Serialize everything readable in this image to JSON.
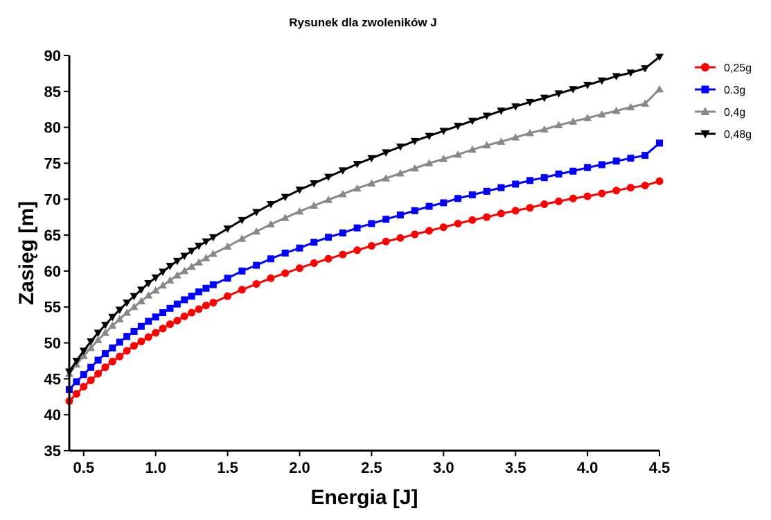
{
  "chart_data": {
    "type": "line",
    "title": "Rysunek dla zwoleników J",
    "xlabel": "Energia [J]",
    "ylabel": "Zasięg [m]",
    "xlim": [
      0.4,
      4.5
    ],
    "ylim": [
      35,
      90
    ],
    "x_ticks": [
      "0.5",
      "1.0",
      "1.5",
      "2.0",
      "2.5",
      "3.0",
      "3.5",
      "4.0",
      "4.5"
    ],
    "x_tick_values": [
      0.5,
      1.0,
      1.5,
      2.0,
      2.5,
      3.0,
      3.5,
      4.0,
      4.5
    ],
    "y_ticks": [
      "35",
      "40",
      "45",
      "50",
      "55",
      "60",
      "65",
      "70",
      "75",
      "80",
      "85",
      "90"
    ],
    "y_tick_values": [
      35,
      40,
      45,
      50,
      55,
      60,
      65,
      70,
      75,
      80,
      85,
      90
    ],
    "grid": false,
    "legend_position": "top-right",
    "x": [
      0.4,
      0.45,
      0.5,
      0.55,
      0.6,
      0.65,
      0.7,
      0.75,
      0.8,
      0.85,
      0.9,
      0.95,
      1.0,
      1.05,
      1.1,
      1.15,
      1.2,
      1.25,
      1.3,
      1.35,
      1.4,
      1.5,
      1.6,
      1.7,
      1.8,
      1.9,
      2.0,
      2.1,
      2.2,
      2.3,
      2.4,
      2.5,
      2.6,
      2.7,
      2.8,
      2.9,
      3.0,
      3.1,
      3.2,
      3.3,
      3.4,
      3.5,
      3.6,
      3.7,
      3.8,
      3.9,
      4.0,
      4.1,
      4.2,
      4.3,
      4.4,
      4.5
    ],
    "series": [
      {
        "name": "0,25g",
        "color": "#ff0000",
        "marker": "circle",
        "values": [
          41.9,
          42.9,
          43.9,
          44.8,
          45.7,
          46.6,
          47.4,
          48.1,
          48.9,
          49.6,
          50.2,
          50.8,
          51.4,
          52.0,
          52.6,
          53.1,
          53.7,
          54.2,
          54.7,
          55.2,
          55.6,
          56.5,
          57.4,
          58.2,
          59.0,
          59.7,
          60.4,
          61.1,
          61.7,
          62.3,
          62.9,
          63.5,
          64.1,
          64.6,
          65.1,
          65.6,
          66.1,
          66.6,
          67.1,
          67.5,
          68.0,
          68.4,
          68.8,
          69.3,
          69.7,
          70.1,
          70.4,
          70.8,
          71.2,
          71.6,
          71.9,
          72.5
        ]
      },
      {
        "name": "0.3g",
        "color": "#0000ff",
        "marker": "square",
        "values": [
          43.5,
          44.6,
          45.6,
          46.6,
          47.6,
          48.5,
          49.3,
          50.1,
          50.9,
          51.6,
          52.3,
          53.0,
          53.6,
          54.2,
          54.8,
          55.4,
          56.0,
          56.5,
          57.1,
          57.6,
          58.1,
          59.0,
          60.0,
          60.8,
          61.7,
          62.5,
          63.2,
          64.0,
          64.7,
          65.3,
          66.0,
          66.6,
          67.2,
          67.8,
          68.4,
          69.0,
          69.5,
          70.1,
          70.6,
          71.1,
          71.6,
          72.1,
          72.6,
          73.0,
          73.5,
          73.9,
          74.4,
          74.8,
          75.3,
          75.7,
          76.1,
          77.8
        ]
      },
      {
        "name": "0,4g",
        "color": "#888888",
        "marker": "triangle-up",
        "values": [
          45.7,
          47.0,
          48.2,
          49.3,
          50.4,
          51.4,
          52.4,
          53.3,
          54.2,
          55.0,
          55.8,
          56.6,
          57.3,
          58.0,
          58.7,
          59.4,
          60.0,
          60.6,
          61.2,
          61.8,
          62.4,
          63.4,
          64.5,
          65.5,
          66.5,
          67.4,
          68.3,
          69.1,
          69.9,
          70.7,
          71.5,
          72.2,
          72.9,
          73.6,
          74.3,
          75.0,
          75.6,
          76.2,
          76.9,
          77.5,
          78.0,
          78.6,
          79.2,
          79.7,
          80.3,
          80.8,
          81.3,
          81.8,
          82.3,
          82.8,
          83.3,
          85.3
        ]
      },
      {
        "name": "0,48g",
        "color": "#000000",
        "marker": "triangle-down",
        "values": [
          46.0,
          47.5,
          48.9,
          50.2,
          51.4,
          52.5,
          53.6,
          54.6,
          55.6,
          56.5,
          57.4,
          58.3,
          59.1,
          59.9,
          60.7,
          61.4,
          62.1,
          62.8,
          63.5,
          64.1,
          64.7,
          65.9,
          67.1,
          68.2,
          69.3,
          70.3,
          71.3,
          72.2,
          73.1,
          74.0,
          74.9,
          75.7,
          76.5,
          77.3,
          78.1,
          78.8,
          79.5,
          80.2,
          80.9,
          81.6,
          82.3,
          82.9,
          83.5,
          84.1,
          84.7,
          85.3,
          85.9,
          86.5,
          87.1,
          87.6,
          88.2,
          89.8
        ]
      }
    ]
  }
}
